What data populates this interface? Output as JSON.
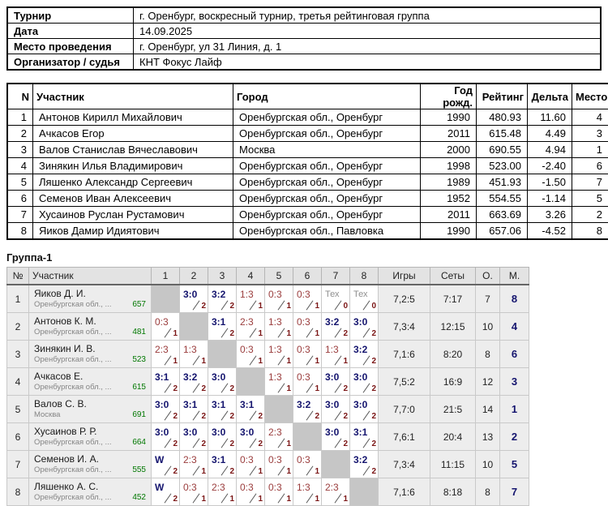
{
  "info_table": {
    "rows": [
      {
        "label": "Турнир",
        "value": "г. Оренбург, воскресный турнир, третья рейтинговая группа"
      },
      {
        "label": "Дата",
        "value": "14.09.2025"
      },
      {
        "label": "Место проведения",
        "value": "г. Оренбург, ул 31 Линия, д. 1"
      },
      {
        "label": "Организатор / судья",
        "value": "КНТ Фокус Лайф"
      }
    ]
  },
  "participants_table": {
    "headers": [
      "N",
      "Участник",
      "Город",
      "Год рожд.",
      "Рейтинг",
      "Дельта",
      "Место"
    ],
    "rows": [
      {
        "n": "1",
        "name": "Антонов Кирилл Михайлович",
        "city": "Оренбургская обл., Оренбург",
        "year": "1990",
        "rating": "480.93",
        "delta": "11.60",
        "place": "4"
      },
      {
        "n": "2",
        "name": "Ачкасов Егор",
        "city": "Оренбургская обл., Оренбург",
        "year": "2011",
        "rating": "615.48",
        "delta": "4.49",
        "place": "3"
      },
      {
        "n": "3",
        "name": "Валов Станислав Вячеславович",
        "city": "Москва",
        "year": "2000",
        "rating": "690.55",
        "delta": "4.94",
        "place": "1"
      },
      {
        "n": "4",
        "name": "Зинякин Илья Владимирович",
        "city": "Оренбургская обл., Оренбург",
        "year": "1998",
        "rating": "523.00",
        "delta": "-2.40",
        "place": "6"
      },
      {
        "n": "5",
        "name": "Ляшенко Александр Сергеевич",
        "city": "Оренбургская обл., Оренбург",
        "year": "1989",
        "rating": "451.93",
        "delta": "-1.50",
        "place": "7"
      },
      {
        "n": "6",
        "name": "Семенов Иван Алексеевич",
        "city": "Оренбургская обл., Оренбург",
        "year": "1952",
        "rating": "554.55",
        "delta": "-1.14",
        "place": "5"
      },
      {
        "n": "7",
        "name": "Хусаинов Руслан Рустамович",
        "city": "Оренбургская обл., Оренбург",
        "year": "2011",
        "rating": "663.69",
        "delta": "3.26",
        "place": "2"
      },
      {
        "n": "8",
        "name": "Яиков Дамир Идиятович",
        "city": "Оренбургская обл., Павловка",
        "year": "1990",
        "rating": "657.06",
        "delta": "-4.52",
        "place": "8"
      }
    ]
  },
  "group": {
    "title": "Группа-1",
    "headers": [
      "№",
      "Участник",
      "1",
      "2",
      "3",
      "4",
      "5",
      "6",
      "7",
      "8",
      "Игры",
      "Сеты",
      "О.",
      "М."
    ],
    "rows": [
      {
        "num": "1",
        "name": "Яиков Д. И.",
        "region": "Оренбургская обл., ...",
        "rating": "657",
        "cells": [
          {
            "type": "self"
          },
          {
            "type": "win",
            "score": "3:0",
            "sub": "2"
          },
          {
            "type": "win",
            "score": "3:2",
            "sub": "2"
          },
          {
            "type": "loss",
            "score": "1:3",
            "sub": "1"
          },
          {
            "type": "loss",
            "score": "0:3",
            "sub": "1"
          },
          {
            "type": "loss",
            "score": "0:3",
            "sub": "1"
          },
          {
            "type": "tech",
            "score": "Тех",
            "sub": "0"
          },
          {
            "type": "tech",
            "score": "Тех",
            "sub": "0"
          }
        ],
        "games": "7,2:5",
        "sets": "7:17",
        "points": "7",
        "place": "8"
      },
      {
        "num": "2",
        "name": "Антонов К. М.",
        "region": "Оренбургская обл., ...",
        "rating": "481",
        "cells": [
          {
            "type": "loss",
            "score": "0:3",
            "sub": "1"
          },
          {
            "type": "self"
          },
          {
            "type": "win",
            "score": "3:1",
            "sub": "2"
          },
          {
            "type": "loss",
            "score": "2:3",
            "sub": "1"
          },
          {
            "type": "loss",
            "score": "1:3",
            "sub": "1"
          },
          {
            "type": "loss",
            "score": "0:3",
            "sub": "1"
          },
          {
            "type": "win",
            "score": "3:2",
            "sub": "2"
          },
          {
            "type": "win",
            "score": "3:0",
            "sub": "2"
          }
        ],
        "games": "7,3:4",
        "sets": "12:15",
        "points": "10",
        "place": "4"
      },
      {
        "num": "3",
        "name": "Зинякин И. В.",
        "region": "Оренбургская обл., ...",
        "rating": "523",
        "cells": [
          {
            "type": "loss",
            "score": "2:3",
            "sub": "1"
          },
          {
            "type": "loss",
            "score": "1:3",
            "sub": "1"
          },
          {
            "type": "self"
          },
          {
            "type": "loss",
            "score": "0:3",
            "sub": "1"
          },
          {
            "type": "loss",
            "score": "1:3",
            "sub": "1"
          },
          {
            "type": "loss",
            "score": "0:3",
            "sub": "1"
          },
          {
            "type": "loss",
            "score": "1:3",
            "sub": "1"
          },
          {
            "type": "win",
            "score": "3:2",
            "sub": "2"
          }
        ],
        "games": "7,1:6",
        "sets": "8:20",
        "points": "8",
        "place": "6"
      },
      {
        "num": "4",
        "name": "Ачкасов Е.",
        "region": "Оренбургская обл., ...",
        "rating": "615",
        "cells": [
          {
            "type": "win",
            "score": "3:1",
            "sub": "2"
          },
          {
            "type": "win",
            "score": "3:2",
            "sub": "2"
          },
          {
            "type": "win",
            "score": "3:0",
            "sub": "2"
          },
          {
            "type": "self"
          },
          {
            "type": "loss",
            "score": "1:3",
            "sub": "1"
          },
          {
            "type": "loss",
            "score": "0:3",
            "sub": "1"
          },
          {
            "type": "win",
            "score": "3:0",
            "sub": "2"
          },
          {
            "type": "win",
            "score": "3:0",
            "sub": "2"
          }
        ],
        "games": "7,5:2",
        "sets": "16:9",
        "points": "12",
        "place": "3"
      },
      {
        "num": "5",
        "name": "Валов С. В.",
        "region": "Москва",
        "rating": "691",
        "cells": [
          {
            "type": "win",
            "score": "3:0",
            "sub": "2"
          },
          {
            "type": "win",
            "score": "3:1",
            "sub": "2"
          },
          {
            "type": "win",
            "score": "3:1",
            "sub": "2"
          },
          {
            "type": "win",
            "score": "3:1",
            "sub": "2"
          },
          {
            "type": "self"
          },
          {
            "type": "win",
            "score": "3:2",
            "sub": "2"
          },
          {
            "type": "win",
            "score": "3:0",
            "sub": "2"
          },
          {
            "type": "win",
            "score": "3:0",
            "sub": "2"
          }
        ],
        "games": "7,7:0",
        "sets": "21:5",
        "points": "14",
        "place": "1"
      },
      {
        "num": "6",
        "name": "Хусаинов Р. Р.",
        "region": "Оренбургская обл., ...",
        "rating": "664",
        "cells": [
          {
            "type": "win",
            "score": "3:0",
            "sub": "2"
          },
          {
            "type": "win",
            "score": "3:0",
            "sub": "2"
          },
          {
            "type": "win",
            "score": "3:0",
            "sub": "2"
          },
          {
            "type": "win",
            "score": "3:0",
            "sub": "2"
          },
          {
            "type": "loss",
            "score": "2:3",
            "sub": "1"
          },
          {
            "type": "self"
          },
          {
            "type": "win",
            "score": "3:0",
            "sub": "2"
          },
          {
            "type": "win",
            "score": "3:1",
            "sub": "2"
          }
        ],
        "games": "7,6:1",
        "sets": "20:4",
        "points": "13",
        "place": "2"
      },
      {
        "num": "7",
        "name": "Семенов И. А.",
        "region": "Оренбургская обл., ...",
        "rating": "555",
        "cells": [
          {
            "type": "win",
            "score": "W",
            "sub": "2"
          },
          {
            "type": "loss",
            "score": "2:3",
            "sub": "1"
          },
          {
            "type": "win",
            "score": "3:1",
            "sub": "2"
          },
          {
            "type": "loss",
            "score": "0:3",
            "sub": "1"
          },
          {
            "type": "loss",
            "score": "0:3",
            "sub": "1"
          },
          {
            "type": "loss",
            "score": "0:3",
            "sub": "1"
          },
          {
            "type": "self"
          },
          {
            "type": "win",
            "score": "3:2",
            "sub": "2"
          }
        ],
        "games": "7,3:4",
        "sets": "11:15",
        "points": "10",
        "place": "5"
      },
      {
        "num": "8",
        "name": "Ляшенко А. С.",
        "region": "Оренбургская обл., ...",
        "rating": "452",
        "cells": [
          {
            "type": "win",
            "score": "W",
            "sub": "2"
          },
          {
            "type": "loss",
            "score": "0:3",
            "sub": "1"
          },
          {
            "type": "loss",
            "score": "2:3",
            "sub": "1"
          },
          {
            "type": "loss",
            "score": "0:3",
            "sub": "1"
          },
          {
            "type": "loss",
            "score": "0:3",
            "sub": "1"
          },
          {
            "type": "loss",
            "score": "1:3",
            "sub": "1"
          },
          {
            "type": "loss",
            "score": "2:3",
            "sub": "1"
          },
          {
            "type": "self"
          }
        ],
        "games": "7,1:6",
        "sets": "8:18",
        "points": "8",
        "place": "7"
      }
    ]
  },
  "colors": {
    "win": "#14146e",
    "loss": "#9a3c3c",
    "sub_points": "#7a1414",
    "tech": "#8f8f8f",
    "rating_green": "#007700",
    "self_cell": "#c6c6c6"
  }
}
